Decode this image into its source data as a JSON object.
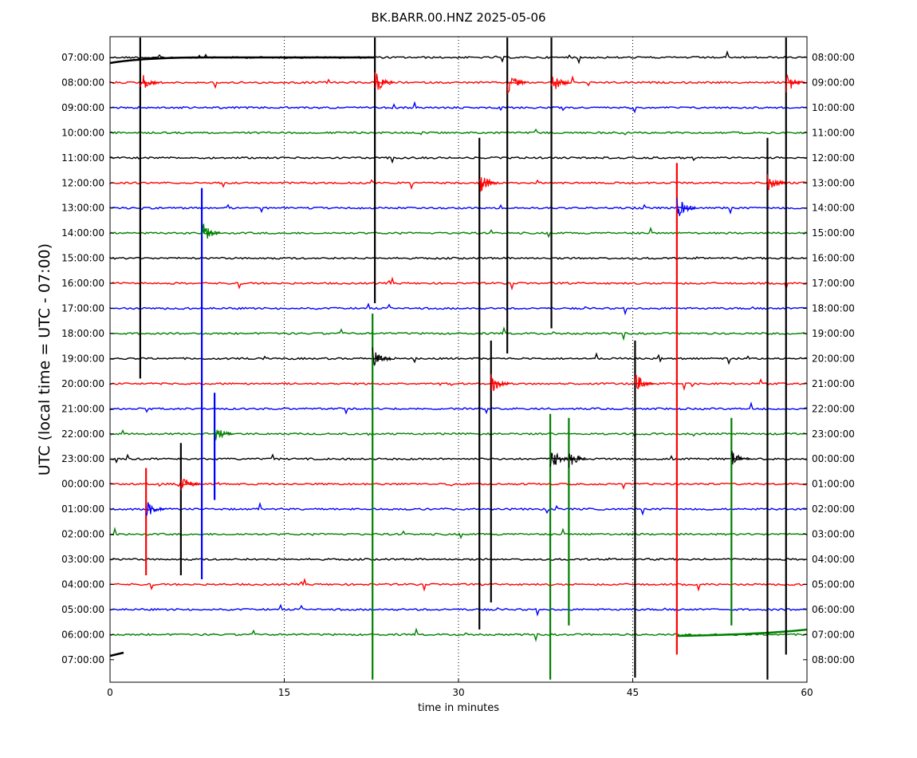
{
  "chart_data": {
    "type": "line",
    "title": "BK.BARR.00.HNZ 2025-05-06",
    "xlabel": "time in minutes",
    "ylabel": "UTC (local time = UTC - 07:00)",
    "xlim": [
      0,
      60
    ],
    "x_ticks": [
      "0",
      "15",
      "30",
      "45",
      "60"
    ],
    "vertical_gridlines_at_minutes": [
      15,
      30,
      45
    ],
    "left_tick_labels": [
      "07:00:00",
      "08:00:00",
      "09:00:00",
      "10:00:00",
      "11:00:00",
      "12:00:00",
      "13:00:00",
      "14:00:00",
      "15:00:00",
      "16:00:00",
      "17:00:00",
      "18:00:00",
      "19:00:00",
      "20:00:00",
      "21:00:00",
      "22:00:00",
      "23:00:00",
      "00:00:00",
      "01:00:00",
      "02:00:00",
      "03:00:00",
      "04:00:00",
      "05:00:00",
      "06:00:00",
      "07:00:00"
    ],
    "right_tick_labels": [
      "08:00:00",
      "09:00:00",
      "10:00:00",
      "11:00:00",
      "12:00:00",
      "13:00:00",
      "14:00:00",
      "15:00:00",
      "16:00:00",
      "17:00:00",
      "18:00:00",
      "19:00:00",
      "20:00:00",
      "21:00:00",
      "22:00:00",
      "23:00:00",
      "00:00:00",
      "01:00:00",
      "02:00:00",
      "03:00:00",
      "04:00:00",
      "05:00:00",
      "06:00:00",
      "07:00:00",
      "08:00:00"
    ],
    "trace_color_cycle": [
      "#000000",
      "#ff0000",
      "#0000ff",
      "#008000"
    ],
    "events": [
      {
        "minute": 2.6,
        "rows": [
          0,
          12
        ],
        "amplitude": 1.0
      },
      {
        "minute": 7.9,
        "rows": [
          6,
          20
        ],
        "amplitude": 1.0
      },
      {
        "minute": 22.8,
        "rows": [
          0,
          9
        ],
        "amplitude": 1.0
      },
      {
        "minute": 22.6,
        "rows": [
          11,
          24
        ],
        "amplitude": 1.0
      },
      {
        "minute": 31.8,
        "rows": [
          4,
          22
        ],
        "amplitude": 1.0
      },
      {
        "minute": 34.2,
        "rows": [
          0,
          11
        ],
        "amplitude": 1.0
      },
      {
        "minute": 32.8,
        "rows": [
          12,
          21
        ],
        "amplitude": 0.9
      },
      {
        "minute": 38.0,
        "rows": [
          0,
          10
        ],
        "amplitude": 1.0
      },
      {
        "minute": 37.9,
        "rows": [
          15,
          24
        ],
        "amplitude": 1.0
      },
      {
        "minute": 45.2,
        "rows": [
          12,
          24
        ],
        "amplitude": 0.9
      },
      {
        "minute": 48.8,
        "rows": [
          5,
          23
        ],
        "amplitude": 1.0
      },
      {
        "minute": 56.6,
        "rows": [
          4,
          24
        ],
        "amplitude": 1.0
      },
      {
        "minute": 58.2,
        "rows": [
          0,
          23
        ],
        "amplitude": 1.0
      },
      {
        "minute": 3.1,
        "rows": [
          17,
          20
        ],
        "amplitude": 0.8
      },
      {
        "minute": 6.1,
        "rows": [
          16,
          20
        ],
        "amplitude": 0.8
      },
      {
        "minute": 9.0,
        "rows": [
          14,
          17
        ],
        "amplitude": 0.8
      },
      {
        "minute": 53.5,
        "rows": [
          15,
          22
        ],
        "amplitude": 0.8
      },
      {
        "minute": 39.5,
        "rows": [
          15,
          22
        ],
        "amplitude": 0.8
      }
    ]
  }
}
